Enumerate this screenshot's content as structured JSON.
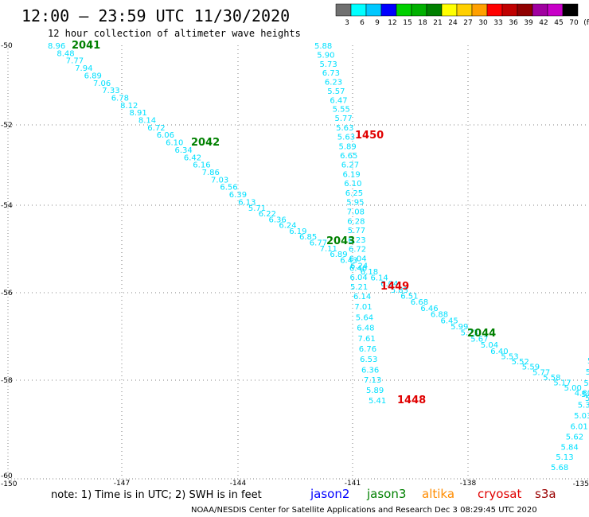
{
  "header": {
    "title": "12:00 – 23:59 UTC 11/30/2020",
    "subtitle": "12 hour collection of altimeter wave heights"
  },
  "legend": {
    "colors": [
      "#707070",
      "#00ffff",
      "#00c8ff",
      "#0000ff",
      "#00d000",
      "#00b000",
      "#008000",
      "#ffff00",
      "#ffd000",
      "#ffa000",
      "#ff0000",
      "#c00000",
      "#900000",
      "#a000a0",
      "#c800c8",
      "#000000"
    ],
    "labels": [
      "3",
      "6",
      "9",
      "12",
      "15",
      "18",
      "21",
      "24",
      "27",
      "30",
      "33",
      "36",
      "39",
      "42",
      "45",
      "70",
      "(ft)"
    ]
  },
  "axes": {
    "x_ticks": [
      "-150",
      "-147",
      "-144",
      "-141",
      "-138",
      "-135"
    ],
    "y_ticks": [
      "-50",
      "-52",
      "-54",
      "-56",
      "-58",
      "-60"
    ]
  },
  "colors": {
    "swh": "#00e0ff",
    "jason2": "#0000ff",
    "jason3": "#008000",
    "altika": "#ff8c00",
    "cryosat": "#e00000",
    "s3a": "#990000",
    "grid": "#808080"
  },
  "passes": [
    {
      "id": "2041",
      "sat": "jason3"
    },
    {
      "id": "2042",
      "sat": "jason3"
    },
    {
      "id": "2043",
      "sat": "jason3"
    },
    {
      "id": "2044",
      "sat": "jason3"
    },
    {
      "id": "1450",
      "sat": "cryosat"
    },
    {
      "id": "1449",
      "sat": "cryosat"
    },
    {
      "id": "1448",
      "sat": "cryosat"
    }
  ],
  "tracks": [
    {
      "name": "track-jason3-2041-2044",
      "values": [
        "8.96",
        "8.48",
        "7.77",
        "7.94",
        "6.89",
        "7.06",
        "7.33",
        "6.78",
        "8.12",
        "8.91",
        "8.14",
        "6.72",
        "6.06",
        "6.10",
        "6.34",
        "6.42",
        "6.16",
        "7.86",
        "7.03",
        "6.56",
        "6.39",
        "6.13",
        "5.71",
        "6.22",
        "6.36",
        "6.24",
        "6.19",
        "6.85",
        "6.77",
        "7.11",
        "6.89",
        "6.43",
        "6.24",
        "6.18",
        "6.14",
        "6.04",
        "5.83",
        "6.51",
        "6.68",
        "6.46",
        "6.88",
        "6.45",
        "5.99",
        "5.73",
        "5.67",
        "5.04",
        "6.40",
        "5.53",
        "5.52",
        "5.59",
        "5.77",
        "5.58",
        "5.17",
        "5.00",
        "4.80",
        "5.06"
      ]
    },
    {
      "name": "track-cryosat-1450",
      "values": [
        "5.88",
        "5.90",
        "5.73",
        "6.73",
        "6.23",
        "5.57",
        "6.47",
        "5.55",
        "5.77",
        "5.63",
        "5.63",
        "5.89",
        "6.65",
        "6.27",
        "6.19",
        "6.10",
        "6.25",
        "5.95",
        "7.08",
        "6.28",
        "5.77",
        "6.23",
        "6.72",
        "6.04",
        "6.46",
        "6.04",
        "5.21"
      ]
    },
    {
      "name": "track-cryosat-1449",
      "values": [
        "6.14",
        "7.01",
        "5.64",
        "6.48",
        "7.61",
        "6.76",
        "6.53",
        "6.36",
        "7.13",
        "5.89",
        "5.41"
      ]
    },
    {
      "name": "track-cryosat-1448",
      "values": [
        "5.5",
        "5.4",
        "5.24",
        "5.6",
        "5.3",
        "5.03",
        "6.01",
        "5.62",
        "5.84",
        "5.13",
        "5.68"
      ]
    }
  ],
  "footer": {
    "note": "note:  1) Time is in UTC;  2) SWH is in feet",
    "satellites": [
      {
        "label": "jason2",
        "key": "jason2"
      },
      {
        "label": "jason3",
        "key": "jason3"
      },
      {
        "label": "altika",
        "key": "altika"
      },
      {
        "label": "cryosat",
        "key": "cryosat"
      },
      {
        "label": "s3a",
        "key": "s3a"
      }
    ],
    "credit": "NOAA/NESDIS Center for Satellite Applications and Research    Dec  3 08:29:45 UTC 2020"
  }
}
